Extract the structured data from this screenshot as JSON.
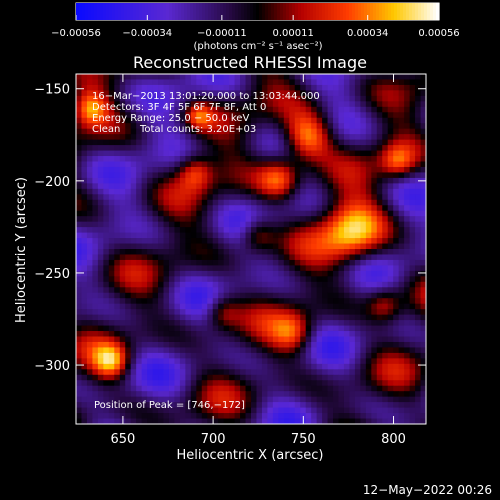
{
  "chart_data": {
    "type": "heatmap",
    "title": "Reconstructed RHESSI Image",
    "xlabel": "Heliocentric X (arcsec)",
    "ylabel": "Heliocentric Y (arcsec)",
    "xlim": [
      624,
      818
    ],
    "ylim": [
      -332,
      -142
    ],
    "x_ticks": [
      650,
      700,
      750,
      800
    ],
    "x_tick_labels": [
      "650",
      "700",
      "750",
      "800"
    ],
    "y_ticks": [
      -150,
      -200,
      -250,
      -300
    ],
    "y_tick_labels": [
      "−150",
      "−200",
      "−250",
      "−300"
    ],
    "colorbar": {
      "min": -0.00056,
      "max": 0.00056,
      "ticks": [
        -0.00056,
        -0.00034,
        -0.00011,
        0.00011,
        0.00034,
        0.00056
      ],
      "tick_labels": [
        "−0.00056",
        "−0.00034",
        "−0.00011",
        "0.00011",
        "0.00034",
        "0.00056"
      ],
      "unit": "(photons cm⁻² s⁻¹ asec⁻²)"
    },
    "annotations": {
      "time_range": "16−Mar−2013 13:01:20.000 to 13:03:44.000",
      "detectors": "Detectors: 3F 4F 5F 6F 7F 8F, Att 0",
      "energy": "Energy Range: 25.0 − 50.0 keV",
      "algorithm": "Clean",
      "counts": "Total counts: 3.20E+03",
      "peak": "Position of Peak = [746,−172]"
    },
    "peak": [
      746,
      -172
    ]
  },
  "footer": {
    "timestamp": "12−May−2022 00:26"
  }
}
